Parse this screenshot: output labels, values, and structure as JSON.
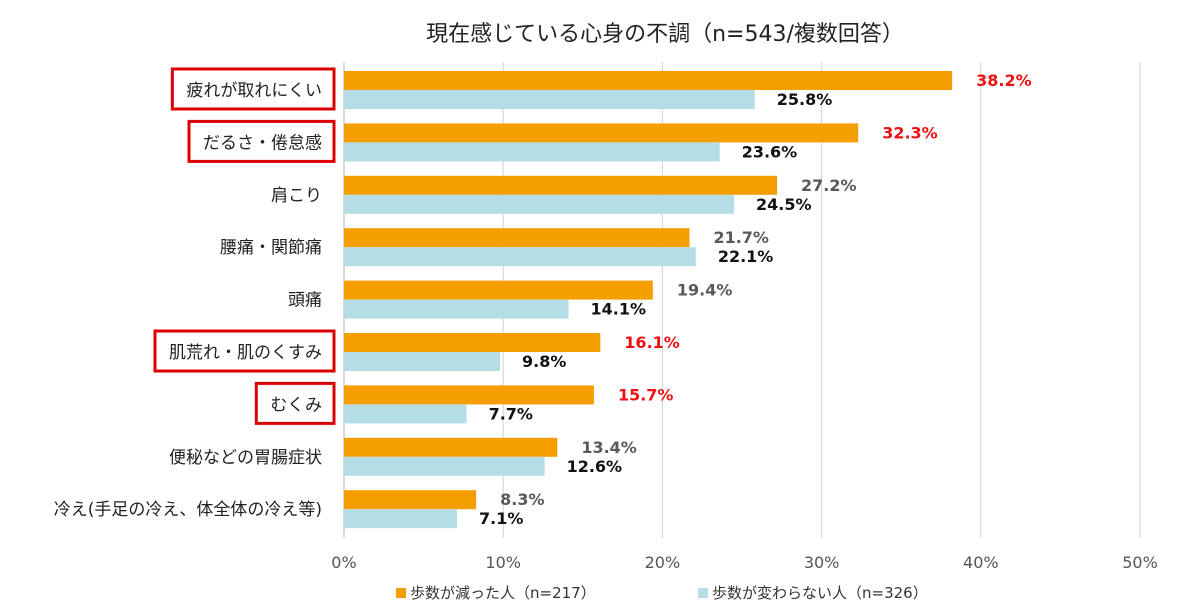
{
  "chart_data": {
    "type": "bar",
    "orientation": "horizontal",
    "title": "現在感じている心身の不調（n=543/複数回答）",
    "categories": [
      "疲れが取れにくい",
      "だるさ・倦怠感",
      "肩こり",
      "腰痛・関節痛",
      "頭痛",
      "肌荒れ・肌のくすみ",
      "むくみ",
      "便秘などの胃腸症状",
      "冷え(手足の冷え、体全体の冷え等)"
    ],
    "highlighted_categories": [
      "疲れが取れにくい",
      "だるさ・倦怠感",
      "肌荒れ・肌のくすみ",
      "むくみ"
    ],
    "series": [
      {
        "name": "歩数が減った人（n=217）",
        "color": "#f59e00",
        "values": [
          38.2,
          32.3,
          27.2,
          21.7,
          19.4,
          16.1,
          15.7,
          13.4,
          8.3
        ],
        "labels": [
          "38.2%",
          "32.3%",
          "27.2%",
          "21.7%",
          "19.4%",
          "16.1%",
          "15.7%",
          "13.4%",
          "8.3%"
        ]
      },
      {
        "name": "歩数が変わらない人（n=326）",
        "color": "#b5dde5",
        "values": [
          25.8,
          23.6,
          24.5,
          22.1,
          14.1,
          9.8,
          7.7,
          12.6,
          7.1
        ],
        "labels": [
          "25.8%",
          "23.6%",
          "24.5%",
          "22.1%",
          "14.1%",
          "9.8%",
          "7.7%",
          "12.6%",
          "7.1%"
        ]
      }
    ],
    "x_ticks": [
      "0%",
      "10%",
      "20%",
      "30%",
      "40%",
      "50%"
    ],
    "xlim": [
      0,
      50
    ],
    "grid": true,
    "legend_position": "bottom",
    "label_colors": {
      "highlight": "#ee1111",
      "normal_series1": "#595959",
      "series2": "#111111"
    },
    "highlight_box_color": "#dd0000"
  }
}
